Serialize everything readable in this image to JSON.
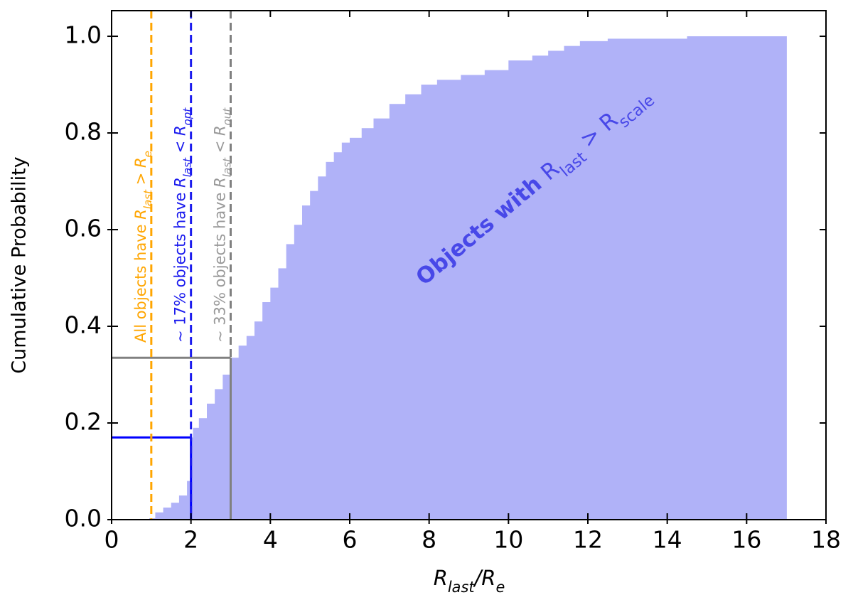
{
  "chart_data": {
    "type": "step-area",
    "color": "#b0b2f8",
    "xlim": [
      0,
      18
    ],
    "ylim": [
      0,
      1.053
    ],
    "xticks": [
      0,
      2,
      4,
      6,
      8,
      10,
      12,
      14,
      16,
      18
    ],
    "yticks": [
      {
        "value": 0,
        "label": "0.0"
      },
      0.2,
      0.4,
      0.6,
      0.8,
      {
        "value": 1,
        "label": "1.0"
      }
    ],
    "xlabel": [
      {
        "t": "R",
        "i": true
      },
      {
        "t": "last",
        "i": true,
        "sub": true
      },
      {
        "t": "/R",
        "i": true
      },
      {
        "t": "e",
        "i": true,
        "sub": true
      }
    ],
    "ylabel": "Cumulative Probability",
    "x": [
      0.95,
      1.1,
      1.3,
      1.5,
      1.7,
      1.9,
      2.0,
      2.05,
      2.2,
      2.4,
      2.6,
      2.8,
      3.0,
      3.2,
      3.4,
      3.6,
      3.8,
      4.0,
      4.2,
      4.4,
      4.6,
      4.8,
      5.0,
      5.2,
      5.4,
      5.6,
      5.8,
      6.0,
      6.3,
      6.6,
      7.0,
      7.4,
      7.8,
      8.2,
      8.8,
      9.4,
      10.0,
      10.6,
      11.0,
      11.4,
      11.8,
      12.5,
      14.5,
      17
    ],
    "values": [
      0.003,
      0.015,
      0.025,
      0.035,
      0.05,
      0.08,
      0.17,
      0.19,
      0.21,
      0.24,
      0.27,
      0.3,
      0.335,
      0.36,
      0.38,
      0.41,
      0.45,
      0.48,
      0.52,
      0.57,
      0.61,
      0.65,
      0.68,
      0.71,
      0.74,
      0.76,
      0.78,
      0.79,
      0.81,
      0.83,
      0.86,
      0.88,
      0.9,
      0.91,
      0.92,
      0.93,
      0.95,
      0.96,
      0.97,
      0.98,
      0.99,
      0.995,
      1.0,
      1.0
    ],
    "vlines": [
      {
        "x": 1,
        "color": "#ffa500",
        "dashed": true,
        "text_color": "#ffa500",
        "text": [
          {
            "t": "All objects have "
          },
          {
            "t": "R",
            "i": true
          },
          {
            "t": "last",
            "i": true,
            "sub": true
          },
          {
            "t": " > "
          },
          {
            "t": "R",
            "i": true
          },
          {
            "t": "e",
            "i": true,
            "sub": true
          }
        ]
      },
      {
        "x": 2,
        "color": "#1a1aee",
        "dashed": true,
        "text_color": "#1a1aee",
        "text": [
          {
            "t": "~ 17% objects have "
          },
          {
            "t": "R",
            "i": true
          },
          {
            "t": "last",
            "i": true,
            "sub": true
          },
          {
            "t": " < "
          },
          {
            "t": "R",
            "i": true
          },
          {
            "t": "opt",
            "i": true,
            "sub": true
          }
        ]
      },
      {
        "x": 3,
        "color": "#808080",
        "dashed": true,
        "text_color": "#999999",
        "text": [
          {
            "t": "~ 33% objects have "
          },
          {
            "t": "R",
            "i": true
          },
          {
            "t": "last",
            "i": true,
            "sub": true
          },
          {
            "t": " < "
          },
          {
            "t": "R",
            "i": true
          },
          {
            "t": "out",
            "i": true,
            "sub": true
          }
        ]
      }
    ],
    "markers": [
      {
        "x": 2,
        "y": 0.17,
        "color": "#0000ff"
      },
      {
        "x": 3,
        "y": 0.335,
        "color": "#808080"
      }
    ],
    "annotation": {
      "color": "#4848e8",
      "text": [
        {
          "t": "Objects with ",
          "b": true
        },
        {
          "t": "R"
        },
        {
          "t": "last",
          "sub": true
        },
        {
          "t": " > R"
        },
        {
          "t": "scale",
          "sub": true
        }
      ]
    }
  }
}
